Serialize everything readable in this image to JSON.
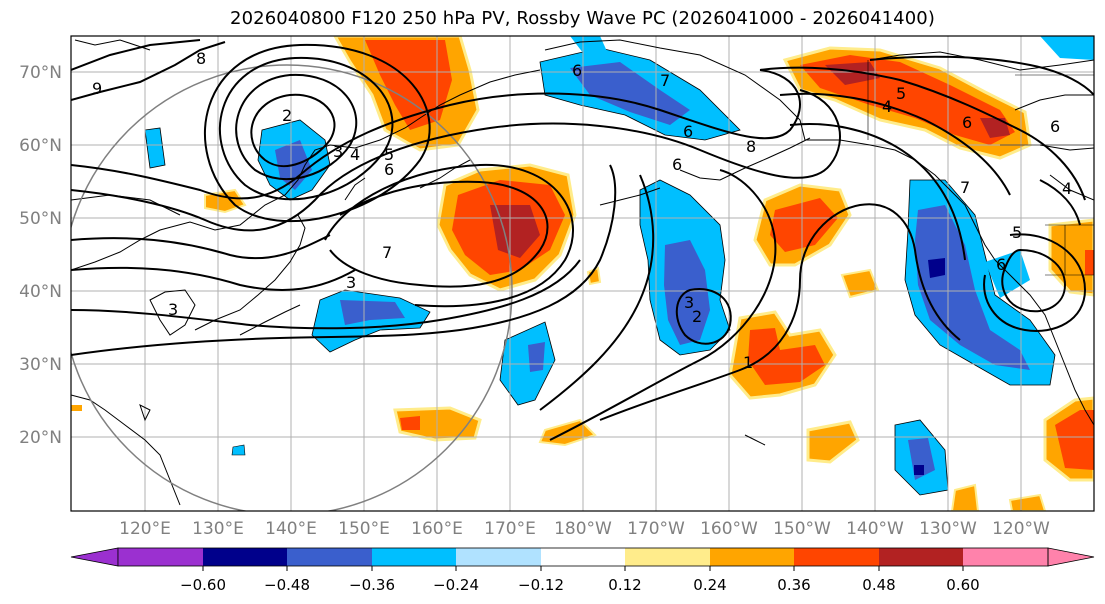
{
  "title": "2026040800 F120 250 hPa PV, Rossby Wave PC (2026041000 - 2026041400)",
  "lat_labels": [
    "70°N",
    "60°N",
    "50°N",
    "40°N",
    "30°N",
    "20°N"
  ],
  "lon_labels": [
    "120°E",
    "130°E",
    "140°E",
    "150°E",
    "160°E",
    "170°E",
    "180°W",
    "170°W",
    "160°W",
    "150°W",
    "140°W",
    "130°W",
    "120°W"
  ],
  "colorbar": {
    "ticks": [
      "−0.60",
      "−0.48",
      "−0.36",
      "−0.24",
      "−0.12",
      "0.12",
      "0.24",
      "0.36",
      "0.48",
      "0.60"
    ],
    "colors": [
      "#9b30d0",
      "#00008b",
      "#3a5fcd",
      "#00bfff",
      "#b0e2ff",
      "#ffffff",
      "#ffec8b",
      "#ffa500",
      "#ff4500",
      "#b22222",
      "#ff82ab"
    ]
  },
  "contour_labels": [
    "9",
    "8",
    "2",
    "3",
    "4",
    "5",
    "6",
    "6",
    "6",
    "7",
    "3",
    "3",
    "3",
    "2",
    "1",
    "7",
    "6",
    "8",
    "7",
    "4",
    "5",
    "6",
    "6",
    "4",
    "5",
    "6"
  ]
}
